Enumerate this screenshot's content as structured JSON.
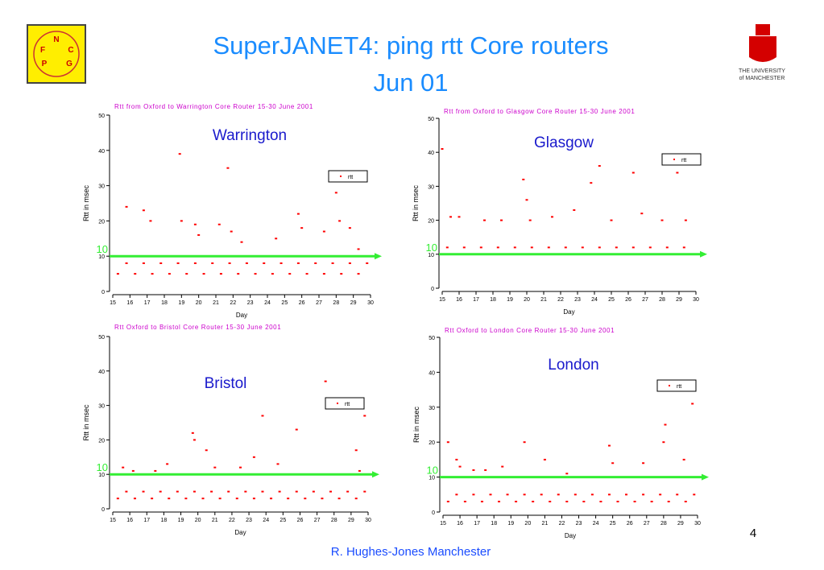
{
  "title": "SuperJANET4: ping rtt Core routers",
  "subtitle": "Jun 01",
  "footer": "R. Hughes-Jones  Manchester",
  "page_number": "4",
  "logo_left": {
    "letters": [
      "N",
      "F",
      "C",
      "P",
      "G"
    ]
  },
  "logo_right": {
    "line1": "THE UNIVERSITY",
    "line2": "of MANCHESTER"
  },
  "chart_data": [
    {
      "type": "scatter",
      "title": "Rtt from Oxford to Warrington Core Router 15-30 June 2001",
      "annotation": "Warrington",
      "x_label": "Day",
      "y_label": "Rtt in msec",
      "xlim": [
        15,
        30
      ],
      "ylim": [
        0,
        50
      ],
      "xticks": [
        15,
        16,
        17,
        18,
        19,
        20,
        21,
        22,
        23,
        24,
        25,
        26,
        27,
        28,
        29,
        30
      ],
      "yticks": [
        0,
        10,
        20,
        30,
        40,
        50
      ],
      "reference_line": {
        "value": 10,
        "color": "#33ee33"
      },
      "series": [
        {
          "name": "rtt",
          "color": "#ff0000",
          "x": [
            15.3,
            16.3,
            17.3,
            18.3,
            19.3,
            20.3,
            21.3,
            22.3,
            23.3,
            24.3,
            25.3,
            26.3,
            27.3,
            28.3,
            29.3,
            15.8,
            16.8,
            17.8,
            18.8,
            19.8,
            20.8,
            21.8,
            22.8,
            23.8,
            24.8,
            25.8,
            26.8,
            27.8,
            28.8,
            29.8,
            15.8,
            16.8,
            17.2,
            18.9,
            19.0,
            19.8,
            20.0,
            21.2,
            21.7,
            21.9,
            22.5,
            24.5,
            25.8,
            26.0,
            27.3,
            28.0,
            28.2,
            28.8,
            29.3
          ],
          "values": [
            5,
            5,
            5,
            5,
            5,
            5,
            5,
            5,
            5,
            5,
            5,
            5,
            5,
            5,
            5,
            8,
            8,
            8,
            8,
            8,
            8,
            8,
            8,
            8,
            8,
            8,
            8,
            8,
            8,
            8,
            24,
            23,
            20,
            39,
            20,
            19,
            16,
            19,
            35,
            17,
            14,
            15,
            22,
            18,
            17,
            28,
            20,
            18,
            12
          ]
        }
      ]
    },
    {
      "type": "scatter",
      "title": "Rtt from Oxford to Glasgow Core Router 15-30 June 2001",
      "annotation": "Glasgow",
      "x_label": "Day",
      "y_label": "Rtt in msec",
      "xlim": [
        15,
        30
      ],
      "ylim": [
        0,
        50
      ],
      "xticks": [
        15,
        16,
        17,
        18,
        19,
        20,
        21,
        22,
        23,
        24,
        25,
        26,
        27,
        28,
        29,
        30
      ],
      "yticks": [
        0,
        10,
        20,
        30,
        40,
        50
      ],
      "reference_line": {
        "value": 10,
        "color": "#33ee33"
      },
      "series": [
        {
          "name": "rtt",
          "color": "#ff0000",
          "x": [
            15.3,
            16.3,
            17.3,
            18.3,
            19.3,
            20.3,
            21.3,
            22.3,
            23.3,
            24.3,
            25.3,
            26.3,
            27.3,
            28.3,
            29.3,
            15.8,
            16.8,
            17.8,
            18.8,
            19.8,
            20.8,
            21.8,
            22.8,
            23.8,
            24.8,
            25.8,
            26.8,
            27.8,
            28.8,
            29.8,
            15.0,
            15.5,
            16.0,
            17.5,
            18.5,
            19.8,
            20.0,
            20.2,
            21.5,
            22.8,
            23.8,
            24.3,
            25.0,
            26.3,
            26.8,
            28.0,
            28.9,
            29.4
          ],
          "values": [
            12,
            12,
            12,
            12,
            12,
            12,
            12,
            12,
            12,
            12,
            12,
            12,
            12,
            12,
            12,
            10,
            10,
            10,
            10,
            10,
            10,
            10,
            10,
            10,
            10,
            10,
            10,
            10,
            10,
            10,
            41,
            21,
            21,
            20,
            20,
            32,
            26,
            20,
            21,
            23,
            31,
            36,
            20,
            34,
            22,
            20,
            34,
            20
          ]
        }
      ]
    },
    {
      "type": "scatter",
      "title": "Rtt Oxford to Bristol Core Router 15-30 June 2001",
      "annotation": "Bristol",
      "x_label": "Day",
      "y_label": "Rtt in msec",
      "xlim": [
        15,
        30
      ],
      "ylim": [
        0,
        50
      ],
      "xticks": [
        15,
        16,
        17,
        18,
        19,
        20,
        21,
        22,
        23,
        24,
        25,
        26,
        27,
        28,
        29,
        30
      ],
      "yticks": [
        0,
        10,
        20,
        30,
        40,
        50
      ],
      "reference_line": {
        "value": 10,
        "color": "#33ee33"
      },
      "series": [
        {
          "name": "rtt",
          "color": "#ff0000",
          "x": [
            15.3,
            16.3,
            17.3,
            18.3,
            19.3,
            20.3,
            21.3,
            22.3,
            23.3,
            24.3,
            25.3,
            26.3,
            27.3,
            28.3,
            29.3,
            15.8,
            16.8,
            17.8,
            18.8,
            19.8,
            20.8,
            21.8,
            22.8,
            23.8,
            24.8,
            25.8,
            26.8,
            27.8,
            28.8,
            29.8,
            15.6,
            16.2,
            17.5,
            18.2,
            19.7,
            19.8,
            20.5,
            21.0,
            22.5,
            23.3,
            23.8,
            24.7,
            25.8,
            27.5,
            29.3,
            29.8,
            29.5
          ],
          "values": [
            3,
            3,
            3,
            3,
            3,
            3,
            3,
            3,
            3,
            3,
            3,
            3,
            3,
            3,
            3,
            5,
            5,
            5,
            5,
            5,
            5,
            5,
            5,
            5,
            5,
            5,
            5,
            5,
            5,
            5,
            12,
            11,
            11,
            13,
            22,
            20,
            17,
            12,
            12,
            15,
            27,
            13,
            23,
            37,
            17,
            27,
            11
          ]
        }
      ]
    },
    {
      "type": "scatter",
      "title": "Rtt Oxford to London Core Router 15-30 June 2001",
      "annotation": "London",
      "x_label": "Day",
      "y_label": "Rtt in msec",
      "xlim": [
        15,
        30
      ],
      "ylim": [
        0,
        50
      ],
      "xticks": [
        15,
        16,
        17,
        18,
        19,
        20,
        21,
        22,
        23,
        24,
        25,
        26,
        27,
        28,
        29,
        30
      ],
      "yticks": [
        0,
        10,
        20,
        30,
        40,
        50
      ],
      "reference_line": {
        "value": 10,
        "color": "#33ee33"
      },
      "series": [
        {
          "name": "rtt",
          "color": "#ff0000",
          "x": [
            15.3,
            16.3,
            17.3,
            18.3,
            19.3,
            20.3,
            21.3,
            22.3,
            23.3,
            24.3,
            25.3,
            26.3,
            27.3,
            28.3,
            29.3,
            15.8,
            16.8,
            17.8,
            18.8,
            19.8,
            20.8,
            21.8,
            22.8,
            23.8,
            24.8,
            25.8,
            26.8,
            27.8,
            28.8,
            29.8,
            15.3,
            15.8,
            16.0,
            16.8,
            17.5,
            18.5,
            19.8,
            21.0,
            22.3,
            24.8,
            25.0,
            26.8,
            28.0,
            28.1,
            29.2,
            29.7
          ],
          "values": [
            3,
            3,
            3,
            3,
            3,
            3,
            3,
            3,
            3,
            3,
            3,
            3,
            3,
            3,
            3,
            5,
            5,
            5,
            5,
            5,
            5,
            5,
            5,
            5,
            5,
            5,
            5,
            5,
            5,
            5,
            20,
            15,
            13,
            12,
            12,
            13,
            20,
            15,
            11,
            19,
            14,
            14,
            20,
            25,
            15,
            31
          ]
        }
      ]
    }
  ]
}
